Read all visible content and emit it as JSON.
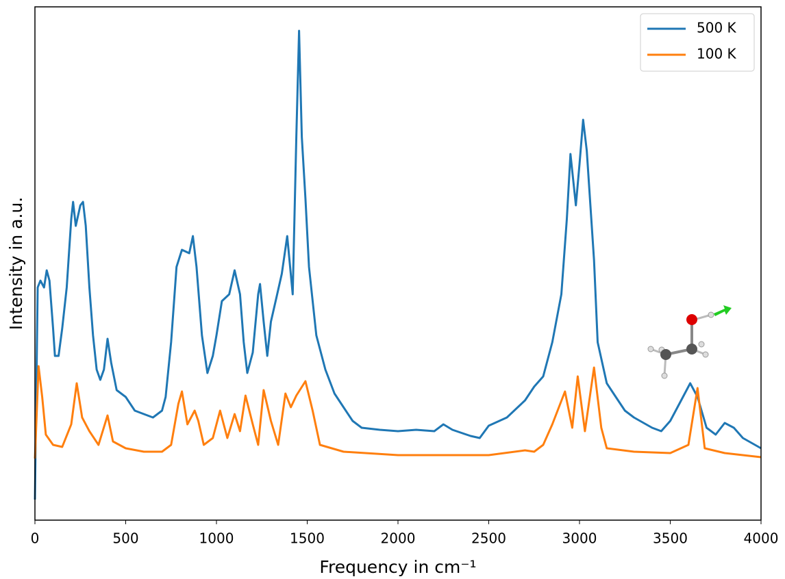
{
  "chart_data": {
    "type": "line",
    "x_label": "Frequency in cm⁻¹",
    "y_label": "Intensity in a.u.",
    "xlim": [
      0,
      4000
    ],
    "xticks": [
      0,
      500,
      1000,
      1500,
      2000,
      2500,
      3000,
      3500,
      4000
    ],
    "ylim": [
      0,
      150
    ],
    "legend": "upper right",
    "series": [
      {
        "name": "500 K",
        "color": "#1f77b4",
        "x": [
          0,
          15,
          30,
          50,
          65,
          80,
          100,
          110,
          130,
          150,
          175,
          200,
          210,
          225,
          250,
          265,
          280,
          300,
          320,
          340,
          360,
          380,
          400,
          420,
          450,
          500,
          550,
          600,
          650,
          700,
          720,
          750,
          780,
          810,
          850,
          870,
          890,
          920,
          950,
          980,
          1000,
          1030,
          1070,
          1100,
          1130,
          1150,
          1170,
          1200,
          1230,
          1240,
          1260,
          1280,
          1300,
          1330,
          1360,
          1390,
          1420,
          1440,
          1455,
          1470,
          1490,
          1510,
          1550,
          1600,
          1650,
          1700,
          1750,
          1800,
          1900,
          2000,
          2100,
          2200,
          2250,
          2300,
          2400,
          2450,
          2500,
          2600,
          2700,
          2750,
          2800,
          2850,
          2900,
          2930,
          2950,
          2980,
          3000,
          3020,
          3040,
          3060,
          3080,
          3100,
          3150,
          3200,
          3250,
          3300,
          3400,
          3450,
          3500,
          3560,
          3610,
          3650,
          3700,
          3750,
          3800,
          3850,
          3900,
          4000
        ],
        "values": [
          6,
          68,
          70,
          68,
          73,
          70,
          56,
          48,
          48,
          56,
          68,
          88,
          93,
          86,
          92,
          93,
          86,
          68,
          54,
          44,
          41,
          44,
          53,
          46,
          38,
          36,
          32,
          31,
          30,
          32,
          36,
          52,
          74,
          79,
          78,
          83,
          74,
          54,
          43,
          48,
          54,
          64,
          66,
          73,
          66,
          52,
          43,
          49,
          66,
          69,
          58,
          48,
          58,
          65,
          72,
          83,
          66,
          112,
          143,
          112,
          94,
          74,
          54,
          44,
          37,
          33,
          29,
          27,
          26.4,
          26,
          26.4,
          26,
          28,
          26.4,
          24.6,
          24,
          27.6,
          30,
          35,
          39,
          42,
          52,
          66,
          88,
          107,
          92,
          104,
          117,
          108,
          92,
          76,
          52,
          40,
          36,
          32,
          30,
          27,
          26,
          29,
          35,
          40,
          36,
          27,
          25,
          28.4,
          27,
          24,
          21
        ]
      },
      {
        "name": "100 K",
        "color": "#ff7f0e",
        "x": [
          0,
          20,
          40,
          60,
          100,
          150,
          200,
          230,
          260,
          300,
          350,
          400,
          430,
          500,
          600,
          700,
          750,
          790,
          810,
          840,
          880,
          900,
          930,
          980,
          1020,
          1060,
          1100,
          1130,
          1160,
          1200,
          1230,
          1260,
          1300,
          1340,
          1380,
          1410,
          1440,
          1490,
          1530,
          1570,
          1700,
          2000,
          2500,
          2700,
          2750,
          2800,
          2850,
          2920,
          2960,
          2990,
          3030,
          3080,
          3120,
          3150,
          3300,
          3500,
          3600,
          3650,
          3690,
          3800,
          4000
        ],
        "values": [
          18,
          45,
          36,
          25,
          22,
          21.4,
          28,
          40,
          30,
          26,
          22,
          30.6,
          23,
          21,
          20,
          20,
          22,
          34,
          37.6,
          28,
          32,
          29,
          22,
          24,
          32,
          24,
          31,
          26,
          36.4,
          28,
          22,
          38,
          29,
          22,
          37,
          33,
          36.4,
          40.6,
          32,
          22,
          20,
          19,
          19,
          20.4,
          20,
          22,
          28,
          37.6,
          27,
          42,
          26,
          44.6,
          27,
          21,
          20,
          19.6,
          22,
          38.6,
          21,
          19.6,
          18.4
        ]
      }
    ]
  }
}
